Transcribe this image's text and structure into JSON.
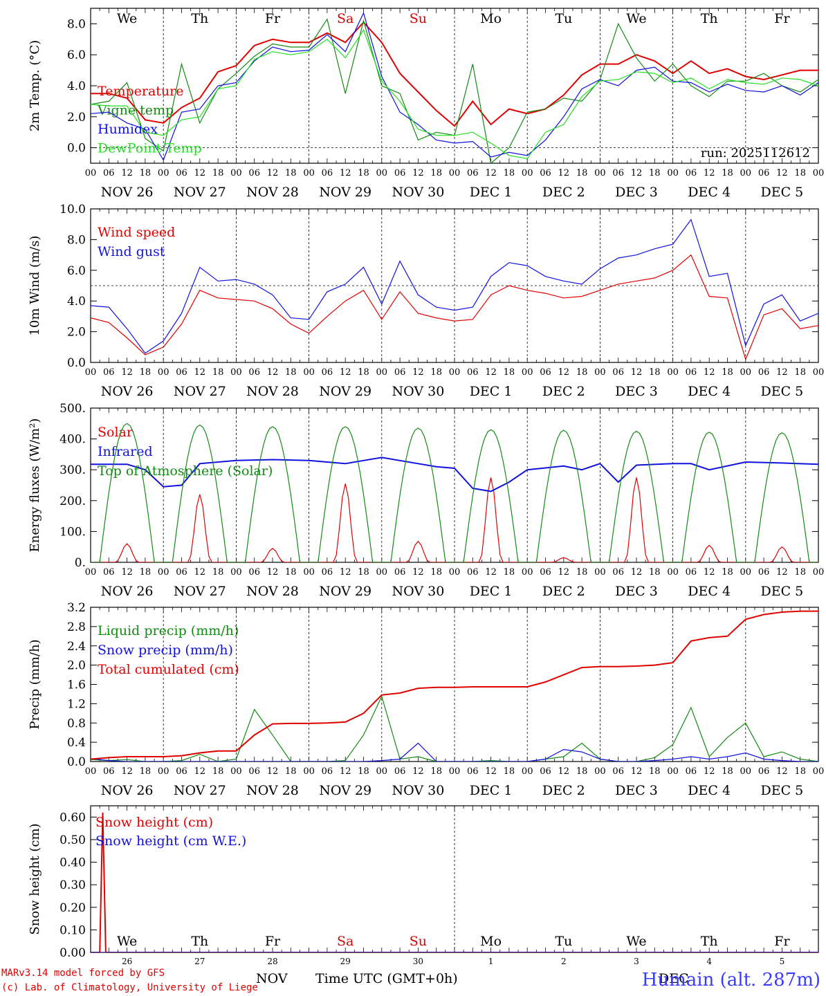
{
  "run_label": "run: 2025112612",
  "station": "Humain (alt. 287m)",
  "credits": [
    "MARv3.14 model forced by GFS",
    "(c) Lab. of Climatology, University of Liege"
  ],
  "footer": {
    "month": "NOV",
    "xlabel": "Time UTC (GMT+0h)",
    "month2": "DEC"
  },
  "days": {
    "weekdays": [
      "We",
      "Th",
      "Fr",
      "Sa",
      "Su",
      "Mo",
      "Tu",
      "We",
      "Th",
      "Fr"
    ],
    "weekend_color": "#e00000",
    "dates": [
      "NOV 26",
      "NOV 27",
      "NOV 28",
      "NOV 29",
      "NOV 30",
      "DEC  1",
      "DEC  2",
      "DEC  3",
      "DEC  4",
      "DEC  5"
    ],
    "day_numbers": [
      "26",
      "27",
      "28",
      "29",
      "30",
      "1",
      "2",
      "3",
      "4",
      "5"
    ],
    "hour_ticks": [
      "00",
      "06",
      "12",
      "18"
    ],
    "last_tick": "00"
  },
  "chart_data": [
    {
      "type": "line",
      "ylabel": "2m Temp. (°C)",
      "ylim": [
        -1.0,
        9.0
      ],
      "yticks": [
        "0.0",
        "2.0",
        "4.0",
        "6.0",
        "8.0"
      ],
      "reference_line": 0.0,
      "x_unit": "hours since NOV 26 00 UTC",
      "series": [
        {
          "name": "Temperature",
          "color": "#e00000",
          "x": [
            0,
            6,
            12,
            18,
            24,
            30,
            36,
            42,
            48,
            54,
            60,
            66,
            72,
            78,
            84,
            90,
            96,
            102,
            108,
            114,
            120,
            126,
            132,
            138,
            144,
            150,
            156,
            162,
            168,
            174,
            180,
            186,
            192,
            198,
            204,
            210,
            216,
            222,
            228,
            234,
            240
          ],
          "values": [
            3.5,
            3.5,
            3.2,
            1.8,
            1.6,
            2.6,
            3.2,
            4.9,
            5.3,
            6.6,
            7.0,
            6.8,
            6.8,
            7.4,
            6.8,
            8.1,
            6.8,
            4.8,
            3.6,
            2.4,
            1.4,
            3.0,
            1.5,
            2.5,
            2.2,
            2.5,
            3.4,
            4.7,
            5.4,
            5.4,
            6.0,
            5.6,
            4.8,
            5.6,
            4.8,
            5.1,
            4.6,
            4.4,
            4.7,
            5.0,
            5.0
          ]
        },
        {
          "name": "Vigne temp",
          "color": "#138a13",
          "x": [
            0,
            6,
            12,
            18,
            24,
            30,
            36,
            42,
            48,
            54,
            60,
            66,
            72,
            78,
            84,
            90,
            96,
            102,
            108,
            114,
            120,
            126,
            132,
            138,
            144,
            150,
            156,
            162,
            168,
            174,
            180,
            186,
            192,
            198,
            204,
            210,
            216,
            222,
            228,
            234,
            240
          ],
          "values": [
            2.8,
            3.0,
            4.2,
            0.6,
            -0.2,
            5.4,
            1.6,
            3.8,
            4.8,
            5.9,
            6.7,
            6.5,
            6.5,
            8.3,
            3.5,
            8.2,
            4.0,
            3.5,
            0.5,
            1.0,
            0.8,
            5.4,
            -1.0,
            0.0,
            2.3,
            2.5,
            3.2,
            3.0,
            4.4,
            8.0,
            5.8,
            4.3,
            5.4,
            4.0,
            3.3,
            4.3,
            4.3,
            4.8,
            4.0,
            3.6,
            4.4
          ]
        },
        {
          "name": "Humidex",
          "color": "#1010e0",
          "x": [
            0,
            6,
            12,
            18,
            24,
            30,
            36,
            42,
            48,
            54,
            60,
            66,
            72,
            78,
            84,
            90,
            96,
            102,
            108,
            114,
            120,
            126,
            132,
            138,
            144,
            150,
            156,
            162,
            168,
            174,
            180,
            186,
            192,
            198,
            204,
            210,
            216,
            222,
            228,
            234,
            240
          ],
          "values": [
            2.2,
            2.3,
            1.6,
            1.2,
            -0.8,
            2.3,
            2.5,
            4.0,
            4.2,
            5.6,
            6.5,
            6.2,
            6.3,
            7.3,
            6.2,
            8.7,
            4.6,
            2.3,
            1.5,
            0.5,
            0.3,
            0.4,
            -0.6,
            -0.3,
            -0.5,
            0.5,
            2.0,
            3.8,
            4.4,
            4.0,
            5.0,
            5.2,
            4.3,
            4.2,
            3.6,
            4.1,
            3.7,
            3.6,
            4.0,
            3.4,
            4.2
          ]
        },
        {
          "name": "DewPoint Temp",
          "color": "#22e022",
          "x": [
            0,
            6,
            12,
            18,
            24,
            30,
            36,
            42,
            48,
            54,
            60,
            66,
            72,
            78,
            84,
            90,
            96,
            102,
            108,
            114,
            120,
            126,
            132,
            138,
            144,
            150,
            156,
            162,
            168,
            174,
            180,
            186,
            192,
            198,
            204,
            210,
            216,
            222,
            228,
            234,
            240
          ],
          "values": [
            2.8,
            2.7,
            2.7,
            1.0,
            0.8,
            1.8,
            2.0,
            3.8,
            4.0,
            5.7,
            6.2,
            6.0,
            6.2,
            7.0,
            5.8,
            7.6,
            4.3,
            3.0,
            1.2,
            0.8,
            0.8,
            1.0,
            0.3,
            -0.5,
            -0.7,
            1.0,
            1.5,
            3.3,
            4.3,
            4.4,
            4.9,
            4.8,
            4.2,
            4.5,
            3.8,
            4.4,
            4.2,
            4.1,
            4.5,
            4.4,
            4.0
          ]
        }
      ]
    },
    {
      "type": "line",
      "ylabel": "10m Wind (m/s)",
      "ylim": [
        0.0,
        10.0
      ],
      "yticks": [
        "0.0",
        "2.0",
        "4.0",
        "6.0",
        "8.0",
        "10.0"
      ],
      "reference_line": 5.0,
      "x_unit": "hours since NOV 26 00 UTC",
      "series": [
        {
          "name": "Wind speed",
          "color": "#e00000",
          "x": [
            0,
            6,
            12,
            18,
            24,
            30,
            36,
            42,
            48,
            54,
            60,
            66,
            72,
            78,
            84,
            90,
            96,
            102,
            108,
            114,
            120,
            126,
            132,
            138,
            144,
            150,
            156,
            162,
            168,
            174,
            180,
            186,
            192,
            198,
            204,
            210,
            216,
            222,
            228,
            234,
            240
          ],
          "values": [
            2.9,
            2.6,
            1.6,
            0.5,
            1.0,
            2.5,
            4.7,
            4.2,
            4.1,
            4.0,
            3.5,
            2.5,
            1.9,
            3.0,
            4.0,
            4.7,
            2.8,
            4.6,
            3.2,
            2.9,
            2.7,
            2.8,
            4.4,
            5.0,
            4.7,
            4.5,
            4.2,
            4.3,
            4.7,
            5.1,
            5.3,
            5.5,
            6.0,
            7.0,
            4.3,
            4.2,
            0.2,
            3.1,
            3.5,
            2.2,
            2.4
          ]
        },
        {
          "name": "Wind gust",
          "color": "#1010e0",
          "x": [
            0,
            6,
            12,
            18,
            24,
            30,
            36,
            42,
            48,
            54,
            60,
            66,
            72,
            78,
            84,
            90,
            96,
            102,
            108,
            114,
            120,
            126,
            132,
            138,
            144,
            150,
            156,
            162,
            168,
            174,
            180,
            186,
            192,
            198,
            204,
            210,
            216,
            222,
            228,
            234,
            240
          ],
          "values": [
            3.7,
            3.6,
            2.2,
            0.6,
            1.4,
            3.2,
            6.2,
            5.3,
            5.4,
            5.1,
            4.4,
            2.9,
            2.8,
            4.6,
            5.1,
            6.2,
            3.8,
            6.6,
            4.4,
            3.6,
            3.4,
            3.6,
            5.6,
            6.5,
            6.3,
            5.6,
            5.3,
            5.1,
            6.1,
            6.8,
            7.0,
            7.4,
            7.7,
            9.3,
            5.6,
            5.8,
            1.1,
            3.8,
            4.4,
            2.7,
            3.2
          ]
        }
      ]
    },
    {
      "type": "line",
      "ylabel": "Energy fluxes (W/m²)",
      "ylim": [
        0,
        500
      ],
      "yticks": [
        "0.",
        "100.",
        "200.",
        "300.",
        "400.",
        "500."
      ],
      "x_unit": "hours since NOV 26 00 UTC",
      "series": [
        {
          "name": "Solar",
          "color": "#e00000",
          "daily_peaks": [
            60,
            220,
            45,
            255,
            68,
            275,
            15,
            275,
            55,
            50
          ],
          "peak_hours": [
            12,
            12,
            12,
            12,
            12,
            12,
            12,
            12,
            12,
            12
          ]
        },
        {
          "name": "Infrared",
          "color": "#1010e0",
          "x": [
            0,
            12,
            18,
            24,
            30,
            36,
            48,
            60,
            72,
            84,
            90,
            96,
            108,
            114,
            120,
            126,
            132,
            138,
            144,
            156,
            162,
            168,
            174,
            180,
            192,
            198,
            204,
            216,
            228,
            240
          ],
          "values": [
            318,
            318,
            300,
            245,
            250,
            320,
            330,
            333,
            330,
            320,
            330,
            340,
            320,
            310,
            305,
            240,
            230,
            260,
            300,
            312,
            300,
            320,
            260,
            315,
            320,
            320,
            300,
            325,
            322,
            318
          ]
        },
        {
          "name": "Top of Atmosphere (Solar)",
          "color": "#138a13",
          "daily_peaks": [
            450,
            445,
            440,
            440,
            435,
            430,
            428,
            425,
            422,
            420
          ],
          "peak_hours": [
            12,
            12,
            12,
            12,
            12,
            12,
            12,
            12,
            12,
            12
          ]
        }
      ]
    },
    {
      "type": "line",
      "ylabel": "Precip (mm/h)",
      "ylim": [
        0.0,
        3.2
      ],
      "yticks": [
        "0.0",
        "0.4",
        "0.8",
        "1.2",
        "1.6",
        "2.0",
        "2.4",
        "2.8",
        "3.2"
      ],
      "x_unit": "hours since NOV 26 00 UTC",
      "series": [
        {
          "name": "Liquid precip (mm/h)",
          "color": "#138a13",
          "x": [
            0,
            6,
            12,
            18,
            24,
            30,
            36,
            42,
            48,
            54,
            60,
            66,
            72,
            78,
            84,
            90,
            96,
            102,
            108,
            114,
            120,
            126,
            132,
            138,
            144,
            150,
            156,
            162,
            168,
            174,
            180,
            186,
            192,
            198,
            204,
            210,
            216,
            222,
            228,
            234,
            240
          ],
          "values": [
            0.04,
            0.02,
            0.04,
            0.0,
            0.0,
            0.02,
            0.15,
            0.0,
            0.05,
            1.08,
            0.55,
            0.0,
            0.0,
            0.0,
            0.02,
            0.55,
            1.35,
            0.05,
            0.1,
            0.0,
            0.0,
            0.0,
            0.02,
            0.0,
            0.0,
            0.05,
            0.1,
            0.38,
            0.05,
            0.0,
            0.0,
            0.08,
            0.35,
            1.12,
            0.1,
            0.5,
            0.8,
            0.1,
            0.2,
            0.05,
            0.0
          ]
        },
        {
          "name": "Snow precip (mm/h)",
          "color": "#1010e0",
          "x": [
            0,
            6,
            12,
            18,
            24,
            30,
            36,
            42,
            48,
            54,
            60,
            66,
            72,
            78,
            84,
            90,
            96,
            102,
            108,
            114,
            120,
            126,
            132,
            138,
            144,
            150,
            156,
            162,
            168,
            174,
            180,
            186,
            192,
            198,
            204,
            210,
            216,
            222,
            228,
            234,
            240
          ],
          "values": [
            0.06,
            0.02,
            0.0,
            0.0,
            0.0,
            0.0,
            0.0,
            0.0,
            0.0,
            0.0,
            0.0,
            0.0,
            0.0,
            0.0,
            0.0,
            0.0,
            0.02,
            0.05,
            0.38,
            0.0,
            0.0,
            0.0,
            0.0,
            0.0,
            0.0,
            0.05,
            0.25,
            0.2,
            0.05,
            0.0,
            0.0,
            0.02,
            0.05,
            0.1,
            0.05,
            0.1,
            0.18,
            0.05,
            0.02,
            0.0,
            0.0
          ]
        },
        {
          "name": "Total cumulated (cm)",
          "color": "#e00000",
          "x": [
            0,
            6,
            12,
            18,
            24,
            30,
            36,
            42,
            48,
            54,
            60,
            66,
            72,
            78,
            84,
            90,
            96,
            102,
            108,
            114,
            120,
            126,
            132,
            138,
            144,
            150,
            156,
            162,
            168,
            174,
            180,
            186,
            192,
            198,
            204,
            210,
            216,
            222,
            228,
            234,
            240
          ],
          "values": [
            0.05,
            0.08,
            0.1,
            0.1,
            0.1,
            0.12,
            0.18,
            0.22,
            0.22,
            0.55,
            0.78,
            0.79,
            0.79,
            0.8,
            0.82,
            1.0,
            1.38,
            1.42,
            1.52,
            1.54,
            1.54,
            1.55,
            1.55,
            1.55,
            1.55,
            1.65,
            1.8,
            1.95,
            1.97,
            1.97,
            1.98,
            2.0,
            2.05,
            2.5,
            2.57,
            2.6,
            2.95,
            3.05,
            3.1,
            3.12,
            3.12
          ]
        }
      ]
    },
    {
      "type": "line",
      "ylabel": "Snow height (cm)",
      "ylim": [
        0.0,
        0.65
      ],
      "yticks": [
        "0.00",
        "0.10",
        "0.20",
        "0.30",
        "0.40",
        "0.50",
        "0.60"
      ],
      "x_unit": "hours since NOV 26 00 UTC",
      "series": [
        {
          "name": "Snow height (cm)",
          "color": "#e00000",
          "x": [
            0,
            3,
            4,
            5,
            6,
            240
          ],
          "values": [
            0.0,
            0.0,
            0.62,
            0.0,
            0.0,
            0.0
          ]
        },
        {
          "name": "Snow height (cm W.E.)",
          "color": "#1010e0",
          "x": [
            0,
            240
          ],
          "values": [
            0.0,
            0.0
          ]
        }
      ]
    }
  ]
}
